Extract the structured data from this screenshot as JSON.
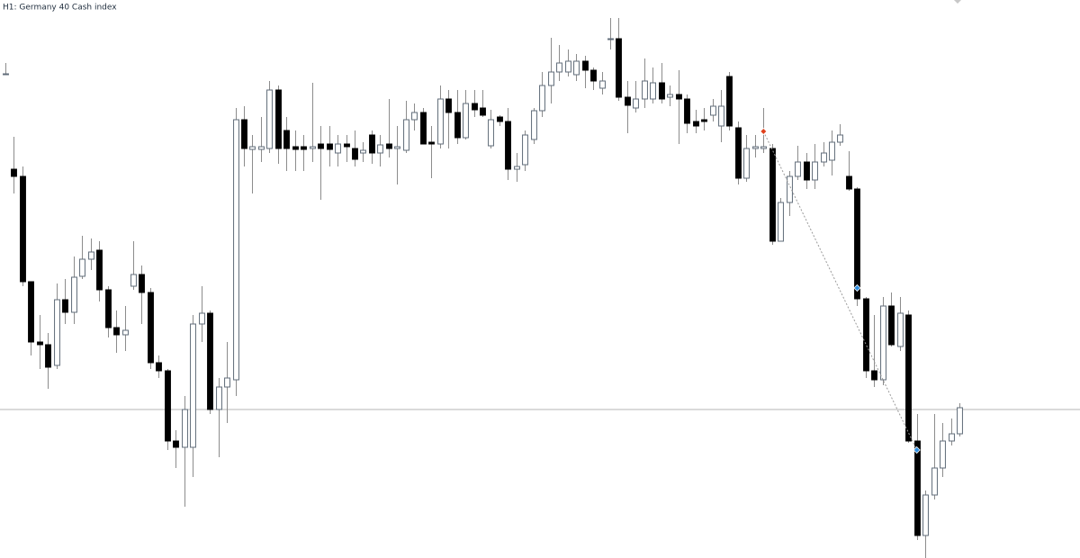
{
  "chart_data": {
    "type": "candlestick",
    "title": "H1:  Germany 40 Cash index",
    "ylim": [
      0,
      620
    ],
    "up_color": "#ffffff",
    "down_color": "#000000",
    "wick_color": "#8c8c8c",
    "outline_color": "#5f6b78",
    "price_line": {
      "value": 165,
      "color": "#b4b4b4"
    },
    "markers": [
      {
        "candle": 89,
        "value": 474,
        "color": "#e0401c"
      },
      {
        "candle": 100,
        "value": 300,
        "color": "#2f8fe0"
      },
      {
        "candle": 107,
        "value": 120,
        "color": "#2f8fe0"
      }
    ],
    "open": [
      538,
      432,
      424,
      307,
      240,
      237,
      214,
      287,
      273,
      313,
      332,
      342,
      298,
      256,
      248,
      302,
      315,
      295,
      217,
      208,
      130,
      123,
      123,
      260,
      272,
      165,
      190,
      198,
      487,
      454,
      454,
      455,
      520,
      475,
      457,
      457,
      455,
      460,
      460,
      450,
      460,
      455,
      450,
      470,
      450,
      460,
      455,
      453,
      487,
      495,
      462,
      460,
      510,
      495,
      467,
      505,
      500,
      458,
      490,
      485,
      432,
      437,
      465,
      497,
      525,
      540,
      540,
      537,
      552,
      542,
      522,
      577,
      577,
      512,
      500,
      510,
      510,
      528,
      512,
      515,
      510,
      485,
      487,
      492,
      480,
      535,
      478,
      422,
      455,
      455,
      455,
      352,
      395,
      424,
      440,
      420,
      440,
      442,
      462,
      424,
      410,
      288,
      208,
      198,
      280,
      235,
      270,
      130,
      25,
      70,
      100,
      130,
      138
    ],
    "high": [
      550,
      468,
      435,
      307,
      270,
      250,
      305,
      310,
      335,
      358,
      355,
      352,
      302,
      275,
      280,
      352,
      325,
      300,
      225,
      210,
      142,
      180,
      270,
      302,
      275,
      200,
      240,
      500,
      502,
      470,
      490,
      530,
      525,
      490,
      475,
      470,
      528,
      480,
      480,
      470,
      470,
      475,
      462,
      475,
      470,
      510,
      480,
      508,
      505,
      500,
      480,
      525,
      520,
      520,
      520,
      520,
      520,
      498,
      492,
      500,
      450,
      475,
      500,
      540,
      578,
      570,
      565,
      560,
      558,
      545,
      540,
      600,
      600,
      530,
      530,
      555,
      545,
      550,
      525,
      542,
      515,
      498,
      500,
      510,
      520,
      540,
      485,
      470,
      470,
      500,
      460,
      400,
      430,
      458,
      450,
      460,
      462,
      475,
      482,
      452,
      412,
      290,
      270,
      290,
      295,
      290,
      275,
      160,
      75,
      160,
      150,
      155,
      172
    ],
    "low": [
      538,
      405,
      302,
      225,
      210,
      188,
      210,
      260,
      260,
      310,
      320,
      285,
      245,
      228,
      230,
      298,
      260,
      210,
      200,
      120,
      100,
      57,
      90,
      240,
      160,
      112,
      150,
      180,
      435,
      405,
      440,
      450,
      438,
      430,
      430,
      430,
      440,
      398,
      435,
      435,
      440,
      435,
      440,
      438,
      435,
      445,
      415,
      450,
      475,
      460,
      422,
      455,
      455,
      460,
      465,
      490,
      490,
      455,
      480,
      420,
      418,
      430,
      460,
      490,
      505,
      530,
      535,
      530,
      522,
      520,
      515,
      565,
      508,
      472,
      495,
      500,
      505,
      505,
      502,
      460,
      472,
      472,
      475,
      485,
      462,
      475,
      415,
      418,
      445,
      450,
      348,
      352,
      380,
      420,
      410,
      410,
      435,
      425,
      458,
      408,
      280,
      200,
      190,
      192,
      235,
      230,
      128,
      20,
      0,
      65,
      90,
      125,
      135
    ],
    "close": [
      538,
      424,
      307,
      240,
      237,
      212,
      287,
      273,
      312,
      332,
      340,
      298,
      256,
      248,
      253,
      315,
      295,
      217,
      208,
      130,
      123,
      165,
      260,
      272,
      165,
      190,
      200,
      487,
      455,
      457,
      457,
      520,
      455,
      455,
      454,
      454,
      457,
      455,
      454,
      460,
      457,
      443,
      453,
      450,
      459,
      455,
      457,
      487,
      495,
      460,
      460,
      510,
      495,
      467,
      505,
      498,
      492,
      487,
      485,
      432,
      435,
      470,
      497,
      525,
      540,
      550,
      552,
      552,
      542,
      530,
      530,
      577,
      512,
      503,
      510,
      530,
      528,
      510,
      515,
      510,
      483,
      480,
      485,
      502,
      502,
      480,
      422,
      455,
      457,
      457,
      352,
      395,
      424,
      440,
      420,
      440,
      450,
      462,
      470,
      410,
      288,
      208,
      198,
      280,
      237,
      272,
      130,
      25,
      70,
      100,
      130,
      138,
      167
    ]
  }
}
